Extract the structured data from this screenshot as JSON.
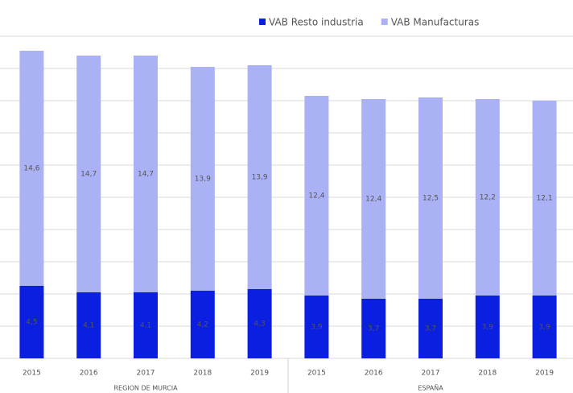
{
  "chart_data": {
    "type": "stacked_bar",
    "categories": [
      "2015",
      "2016",
      "2017",
      "2018",
      "2019",
      "2015",
      "2016",
      "2017",
      "2018",
      "2019"
    ],
    "groups": [
      "REGION DE MURCIA",
      "ESPAÑA"
    ],
    "series": [
      {
        "name": "VAB Resto industria",
        "color": "#0b1fe0",
        "values": [
          4.5,
          4.1,
          4.1,
          4.2,
          4.3,
          3.9,
          3.7,
          3.7,
          3.9,
          3.9
        ],
        "value_labels": [
          "4,5",
          "4,1",
          "4,1",
          "4,2",
          "4,3",
          "3,9",
          "3,7",
          "3,7",
          "3,9",
          "3,9"
        ]
      },
      {
        "name": "VAB Manufacturas",
        "color": "#aab1f5",
        "values": [
          14.6,
          14.7,
          14.7,
          13.9,
          13.9,
          12.4,
          12.4,
          12.5,
          12.2,
          12.1
        ],
        "value_labels": [
          "14,6",
          "14,7",
          "14,7",
          "13,9",
          "13,9",
          "12,4",
          "12,4",
          "12,5",
          "12,2",
          "12,1"
        ]
      }
    ],
    "ylim": [
      0,
      20
    ],
    "yticks": [
      0,
      2,
      4,
      6,
      8,
      10,
      12,
      14,
      16,
      18,
      20
    ],
    "grid": true
  }
}
